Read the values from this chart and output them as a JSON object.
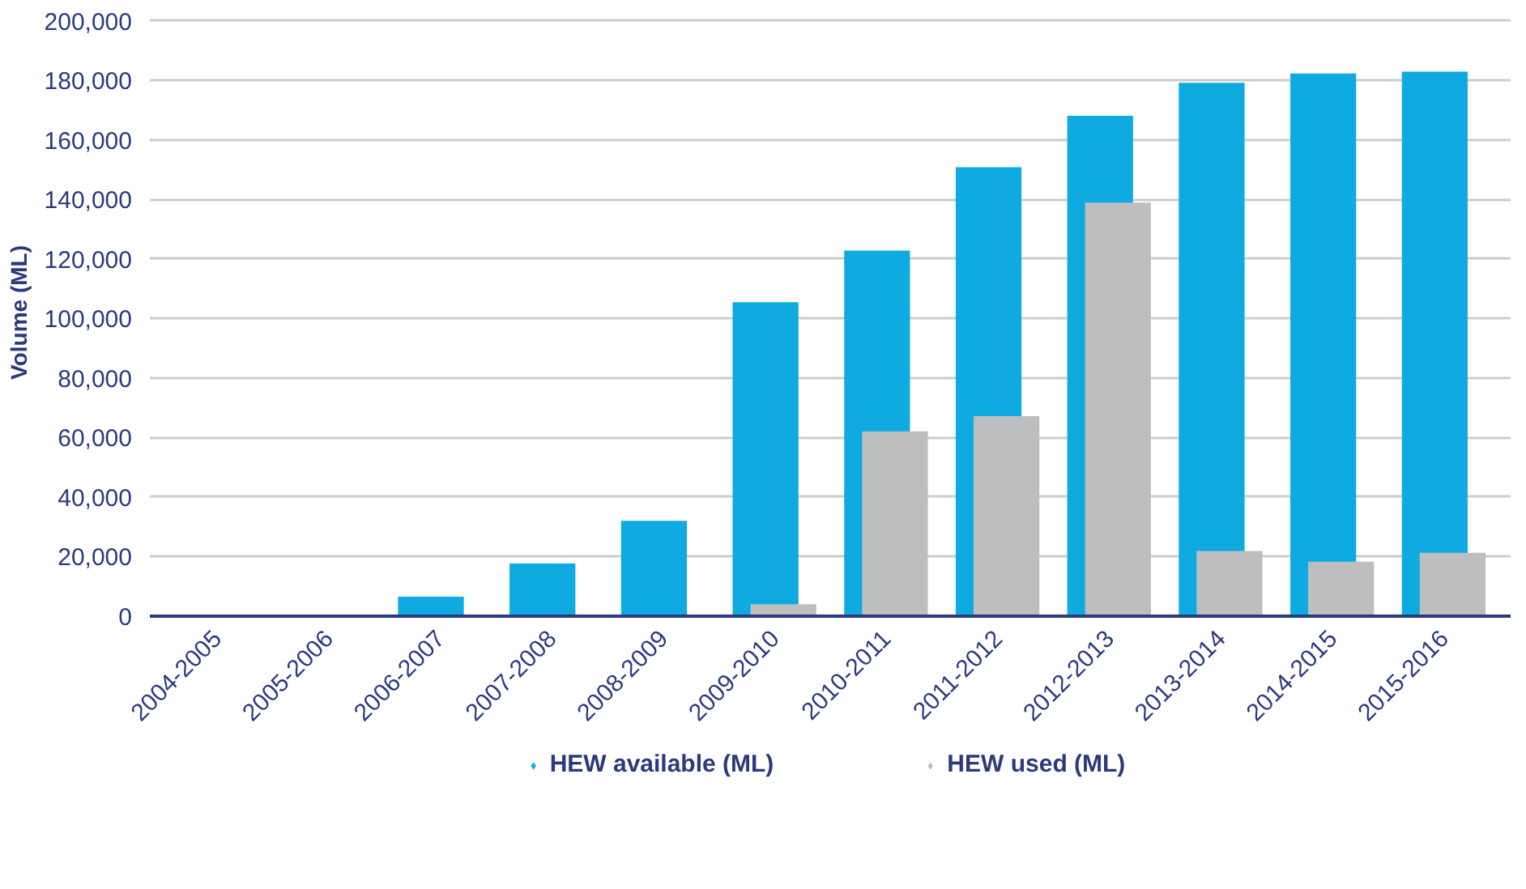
{
  "chart_data": {
    "type": "bar",
    "ylabel": "Volume (ML)",
    "categories": [
      "2004-2005",
      "2005-2006",
      "2006-2007",
      "2007-2008",
      "2008-2009",
      "2009-2010",
      "2010-2011",
      "2011-2012",
      "2012-2013",
      "2013-2014",
      "2014-2015",
      "2015-2016"
    ],
    "series": [
      {
        "name": "HEW available (ML)",
        "color": "#0eaae0",
        "values": [
          0,
          0,
          6500,
          17700,
          32000,
          105500,
          122800,
          150800,
          168100,
          179200,
          182300,
          182900
        ]
      },
      {
        "name": "HEW used (ML)",
        "color": "#bcbec0",
        "values": [
          0,
          0,
          0,
          0,
          0,
          4000,
          62100,
          67200,
          138900,
          21900,
          18300,
          21300
        ]
      }
    ],
    "ylim": [
      0,
      200000
    ],
    "yticks": [
      {
        "value": 0,
        "label": "0"
      },
      {
        "value": 20000,
        "label": "20,000"
      },
      {
        "value": 40000,
        "label": "40,000"
      },
      {
        "value": 60000,
        "label": "60,000"
      },
      {
        "value": 80000,
        "label": "80,000"
      },
      {
        "value": 100000,
        "label": "100,000"
      },
      {
        "value": 120000,
        "label": "120,000"
      },
      {
        "value": 140000,
        "label": "140,000"
      },
      {
        "value": 160000,
        "label": "160,000"
      },
      {
        "value": 180000,
        "label": "180,000"
      },
      {
        "value": 200000,
        "label": "200,000"
      }
    ],
    "grid": "y",
    "legend": "bottom"
  }
}
